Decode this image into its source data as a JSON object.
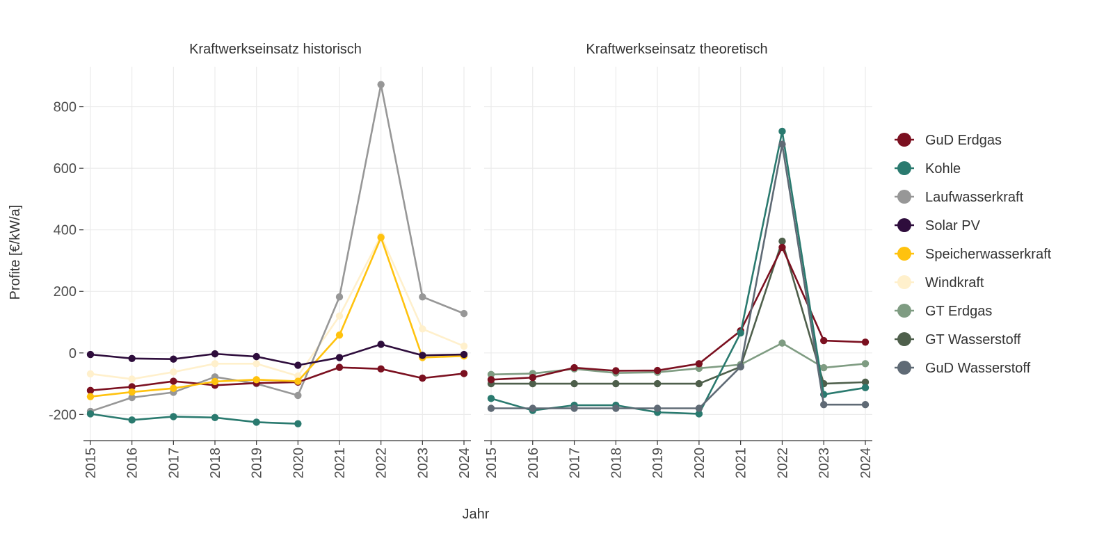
{
  "chart_data": {
    "type": "line",
    "xlabel": "Jahr",
    "ylabel": "Profite [€/kW/a]",
    "ylim": [
      -285,
      930
    ],
    "yticks": [
      -200,
      0,
      200,
      400,
      600,
      800
    ],
    "x": [
      2015,
      2016,
      2017,
      2018,
      2019,
      2020,
      2021,
      2022,
      2023,
      2024
    ],
    "grid": true,
    "legend_position": "right",
    "legend": [
      {
        "name": "GuD Erdgas",
        "color": "#7b1020"
      },
      {
        "name": "Kohle",
        "color": "#2a7a6f"
      },
      {
        "name": "Laufwasserkraft",
        "color": "#979797"
      },
      {
        "name": "Solar PV",
        "color": "#2e0d3c"
      },
      {
        "name": "Speicherwasserkraft",
        "color": "#ffc20e"
      },
      {
        "name": "Windkraft",
        "color": "#fff0cc"
      },
      {
        "name": "GT Erdgas",
        "color": "#7f9c82"
      },
      {
        "name": "GT Wasserstoff",
        "color": "#4e5f4b"
      },
      {
        "name": "GuD Wasserstoff",
        "color": "#5f6a75"
      }
    ],
    "panels": [
      {
        "title": "Kraftwerkseinsatz historisch",
        "series": [
          {
            "name": "Windkraft",
            "values": [
              -68,
              -85,
              -62,
              -35,
              -35,
              -75,
              120,
              380,
              78,
              22
            ]
          },
          {
            "name": "Laufwasserkraft",
            "values": [
              -190,
              -145,
              -128,
              -78,
              -100,
              -138,
              182,
              872,
              182,
              128
            ]
          },
          {
            "name": "Kohle",
            "values": [
              -198,
              -218,
              -207,
              -210,
              -225,
              -230,
              null,
              null,
              null,
              null
            ]
          },
          {
            "name": "GuD Erdgas",
            "values": [
              -122,
              -110,
              -92,
              -105,
              -98,
              -95,
              -47,
              -52,
              -82,
              -67
            ]
          },
          {
            "name": "Speicherwasserkraft",
            "values": [
              -142,
              -127,
              -115,
              -93,
              -87,
              -92,
              58,
              375,
              -15,
              -10
            ]
          },
          {
            "name": "Solar PV",
            "values": [
              -5,
              -18,
              -20,
              -3,
              -12,
              -40,
              -15,
              28,
              -8,
              -5
            ]
          }
        ]
      },
      {
        "title": "Kraftwerkseinsatz theoretisch",
        "series": [
          {
            "name": "GT Erdgas",
            "values": [
              -70,
              -67,
              -52,
              -65,
              -63,
              -50,
              -38,
              32,
              -48,
              -35
            ]
          },
          {
            "name": "GT Wasserstoff",
            "values": [
              -100,
              -100,
              -100,
              -100,
              -100,
              -100,
              -45,
              363,
              -100,
              -95
            ]
          },
          {
            "name": "GuD Erdgas",
            "values": [
              -87,
              -80,
              -48,
              -58,
              -57,
              -35,
              72,
              343,
              40,
              35
            ]
          },
          {
            "name": "Kohle",
            "values": [
              -148,
              -187,
              -170,
              -170,
              -193,
              -198,
              65,
              720,
              -135,
              -113
            ]
          },
          {
            "name": "GuD Wasserstoff",
            "values": [
              -180,
              -180,
              -180,
              -180,
              -180,
              -180,
              -45,
              678,
              -168,
              -168
            ]
          }
        ]
      }
    ]
  }
}
